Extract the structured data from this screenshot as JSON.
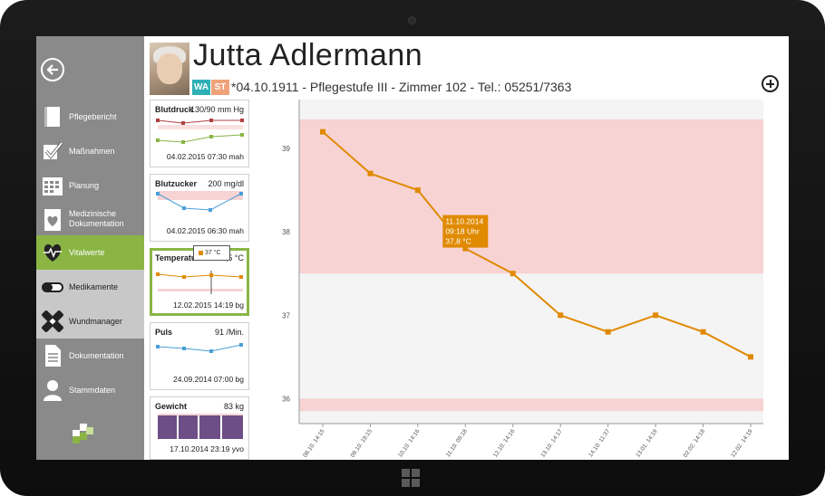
{
  "patient": {
    "name": "Jutta Adlermann",
    "info": "*04.10.1911 - Pflegestufe III - Zimmer 102 - Tel.: 05251/7363",
    "badges": [
      {
        "label": "WA",
        "color": "#2fb0b5"
      },
      {
        "label": "ST",
        "color": "#f0a27a"
      }
    ]
  },
  "sidebar": {
    "items": [
      {
        "label": "Pflegebericht",
        "icon": "book-icon"
      },
      {
        "label": "Maßnahmen",
        "icon": "checklist-icon"
      },
      {
        "label": "Planung",
        "icon": "calendar-icon"
      },
      {
        "label": "Medizinische Dokumentation",
        "icon": "medical-record-icon"
      },
      {
        "label": "Vitalwerte",
        "icon": "heartbeat-icon"
      },
      {
        "label": "Medikamente",
        "icon": "pill-icon"
      },
      {
        "label": "Wundmanager",
        "icon": "bandage-icon"
      },
      {
        "label": "Dokumentation",
        "icon": "document-icon"
      },
      {
        "label": "Stammdaten",
        "icon": "person-icon"
      }
    ],
    "active_item": "Vitalwerte"
  },
  "vital_cards": [
    {
      "title": "Blutdruck",
      "value": "130/90 mm Hg",
      "stamp": "04.02.2015 07:30 mah"
    },
    {
      "title": "Blutzucker",
      "value": "200 mg/dl",
      "stamp": "04.02.2015 06:30 mah"
    },
    {
      "title": "Temperatur",
      "value": "36,5 °C",
      "stamp": "12.02.2015 14:19 bg",
      "tooltip": "37 °C"
    },
    {
      "title": "Puls",
      "value": "91 /Min.",
      "stamp": "24.09.2014 07:00 bg"
    },
    {
      "title": "Gewicht",
      "value": "83 kg",
      "stamp": "17.10.2014 23:19 yvo"
    }
  ],
  "colors": {
    "accent_green": "#8ab545",
    "series_orange": "#e08a00",
    "range_band": "#f7d3d3",
    "sidebar_gray": "#8a8a8a"
  },
  "chart_data": {
    "type": "line",
    "x": [
      "08.10. 14:15",
      "09.10. 19:15",
      "10.10. 14:16",
      "11.10. 09:18",
      "12.10. 14:16",
      "13.10. 14:17",
      "14.10. 11:37",
      "13.01. 14:19",
      "02.02. 14:18",
      "12.02. 14:19"
    ],
    "series": [
      {
        "values": [
          39.2,
          38.7,
          38.5,
          37.8,
          37.5,
          37.0,
          36.8,
          37.0,
          36.8,
          36.5
        ]
      }
    ],
    "yticks": [
      36,
      37,
      38,
      39
    ],
    "ylim": [
      35.7,
      39.5
    ],
    "bands": [
      [
        37.5,
        39.35
      ],
      [
        35.85,
        36.0
      ]
    ],
    "tooltip": {
      "date": "11.10.2014",
      "time": "09:18 Uhr",
      "value": "37,8 °C",
      "index": 3
    }
  }
}
